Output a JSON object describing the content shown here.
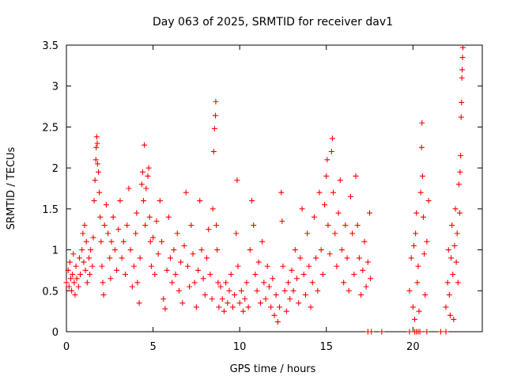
{
  "chart_data": {
    "type": "scatter",
    "title": "Day 063 of 2025, SRMTID for receiver dav1",
    "xlabel": "GPS time / hours",
    "ylabel": "SRMTID / TECUs",
    "xlim": [
      0,
      24
    ],
    "ylim": [
      0,
      3.5
    ],
    "x_ticks": [
      0,
      5,
      10,
      15,
      20
    ],
    "x_tick_labels": [
      "0",
      "5",
      "10",
      "15",
      "20"
    ],
    "y_ticks": [
      0,
      0.5,
      1,
      1.5,
      2,
      2.5,
      3,
      3.5
    ],
    "y_tick_labels": [
      "0",
      "0.5",
      "1",
      "1.5",
      "2",
      "2.5",
      "3",
      "3.5"
    ],
    "grid": false,
    "marker": "+",
    "series": [
      {
        "name": "dav1",
        "color": "#ff0000",
        "points": [
          [
            0.0,
            0.6
          ],
          [
            0.1,
            0.75
          ],
          [
            0.15,
            0.55
          ],
          [
            0.2,
            0.85
          ],
          [
            0.25,
            0.65
          ],
          [
            0.3,
            0.5
          ],
          [
            0.35,
            0.7
          ],
          [
            0.4,
            0.95
          ],
          [
            0.45,
            0.6
          ],
          [
            0.5,
            0.45
          ],
          [
            0.55,
            0.8
          ],
          [
            0.6,
            0.65
          ],
          [
            0.7,
            0.55
          ],
          [
            0.75,
            0.9
          ],
          [
            0.8,
            0.7
          ],
          [
            0.9,
            1.0
          ],
          [
            0.95,
            1.2
          ],
          [
            1.0,
            0.85
          ],
          [
            1.05,
            1.3
          ],
          [
            1.1,
            0.75
          ],
          [
            1.15,
            1.1
          ],
          [
            1.2,
            0.6
          ],
          [
            1.3,
            0.9
          ],
          [
            1.35,
            0.7
          ],
          [
            1.4,
            1.0
          ],
          [
            1.5,
            0.8
          ],
          [
            1.55,
            1.15
          ],
          [
            1.6,
            1.6
          ],
          [
            1.65,
            1.85
          ],
          [
            1.7,
            2.1
          ],
          [
            1.72,
            2.25
          ],
          [
            1.75,
            2.38
          ],
          [
            1.78,
            2.3
          ],
          [
            1.8,
            2.05
          ],
          [
            1.85,
            1.95
          ],
          [
            1.9,
            1.7
          ],
          [
            1.95,
            1.4
          ],
          [
            2.0,
            1.1
          ],
          [
            2.05,
            0.8
          ],
          [
            2.1,
            0.6
          ],
          [
            2.15,
            0.45
          ],
          [
            2.2,
            1.3
          ],
          [
            2.3,
            1.55
          ],
          [
            2.4,
            1.2
          ],
          [
            2.5,
            0.9
          ],
          [
            2.55,
            0.65
          ],
          [
            2.6,
            1.1
          ],
          [
            2.7,
            1.4
          ],
          [
            2.8,
            1.0
          ],
          [
            2.9,
            0.75
          ],
          [
            3.0,
            1.25
          ],
          [
            3.1,
            1.6
          ],
          [
            3.2,
            0.9
          ],
          [
            3.3,
            1.1
          ],
          [
            3.4,
            0.7
          ],
          [
            3.5,
            1.3
          ],
          [
            3.6,
            1.75
          ],
          [
            3.7,
            1.0
          ],
          [
            3.8,
            0.55
          ],
          [
            3.9,
            0.8
          ],
          [
            4.0,
            1.2
          ],
          [
            4.05,
            1.45
          ],
          [
            4.1,
            0.6
          ],
          [
            4.2,
            0.35
          ],
          [
            4.25,
            0.9
          ],
          [
            4.35,
            1.8
          ],
          [
            4.4,
            1.95
          ],
          [
            4.45,
            1.6
          ],
          [
            4.5,
            2.28
          ],
          [
            4.55,
            1.3
          ],
          [
            4.6,
            1.75
          ],
          [
            4.7,
            1.9
          ],
          [
            4.75,
            2.0
          ],
          [
            4.8,
            1.4
          ],
          [
            4.85,
            1.1
          ],
          [
            4.9,
            0.8
          ],
          [
            5.0,
            1.15
          ],
          [
            5.1,
            0.7
          ],
          [
            5.2,
            1.35
          ],
          [
            5.3,
            0.95
          ],
          [
            5.4,
            1.6
          ],
          [
            5.5,
            1.1
          ],
          [
            5.6,
            0.4
          ],
          [
            5.7,
            0.28
          ],
          [
            5.8,
            0.75
          ],
          [
            5.9,
            1.4
          ],
          [
            6.0,
            0.9
          ],
          [
            6.1,
            0.6
          ],
          [
            6.2,
            1.0
          ],
          [
            6.3,
            0.7
          ],
          [
            6.4,
            1.2
          ],
          [
            6.5,
            0.5
          ],
          [
            6.6,
            0.85
          ],
          [
            6.7,
            0.35
          ],
          [
            6.8,
            1.05
          ],
          [
            6.9,
            1.7
          ],
          [
            7.0,
            0.8
          ],
          [
            7.1,
            0.55
          ],
          [
            7.2,
            1.3
          ],
          [
            7.3,
            0.95
          ],
          [
            7.4,
            0.6
          ],
          [
            7.5,
            0.3
          ],
          [
            7.6,
            0.75
          ],
          [
            7.7,
            1.6
          ],
          [
            7.8,
            1.0
          ],
          [
            7.9,
            0.65
          ],
          [
            8.0,
            0.45
          ],
          [
            8.1,
            0.9
          ],
          [
            8.2,
            1.25
          ],
          [
            8.3,
            0.7
          ],
          [
            8.4,
            0.4
          ],
          [
            8.45,
            1.5
          ],
          [
            8.5,
            2.2
          ],
          [
            8.55,
            2.48
          ],
          [
            8.6,
            2.64
          ],
          [
            8.62,
            2.81
          ],
          [
            8.65,
            1.3
          ],
          [
            8.7,
            1.0
          ],
          [
            8.75,
            0.6
          ],
          [
            8.8,
            0.3
          ],
          [
            8.9,
            0.55
          ],
          [
            9.0,
            0.4
          ],
          [
            9.1,
            0.25
          ],
          [
            9.2,
            0.6
          ],
          [
            9.3,
            0.35
          ],
          [
            9.4,
            0.5
          ],
          [
            9.5,
            0.7
          ],
          [
            9.6,
            0.3
          ],
          [
            9.7,
            0.45
          ],
          [
            9.8,
            1.2
          ],
          [
            9.85,
            1.85
          ],
          [
            9.9,
            0.8
          ],
          [
            10.0,
            0.35
          ],
          [
            10.1,
            0.5
          ],
          [
            10.2,
            0.25
          ],
          [
            10.3,
            0.4
          ],
          [
            10.4,
            0.6
          ],
          [
            10.5,
            0.3
          ],
          [
            10.6,
            1.0
          ],
          [
            10.7,
            1.6
          ],
          [
            10.8,
            1.3
          ],
          [
            10.9,
            0.7
          ],
          [
            11.0,
            0.5
          ],
          [
            11.1,
            0.85
          ],
          [
            11.2,
            0.35
          ],
          [
            11.3,
            1.1
          ],
          [
            11.4,
            0.6
          ],
          [
            11.5,
            0.4
          ],
          [
            11.6,
            0.8
          ],
          [
            11.7,
            0.55
          ],
          [
            11.8,
            0.3
          ],
          [
            11.9,
            0.65
          ],
          [
            12.0,
            0.2
          ],
          [
            12.1,
            0.45
          ],
          [
            12.2,
            0.12
          ],
          [
            12.3,
            0.3
          ],
          [
            12.4,
            1.7
          ],
          [
            12.45,
            1.35
          ],
          [
            12.5,
            0.8
          ],
          [
            12.6,
            0.5
          ],
          [
            12.7,
            0.25
          ],
          [
            12.8,
            0.6
          ],
          [
            12.9,
            0.4
          ],
          [
            13.0,
            0.75
          ],
          [
            13.1,
            0.5
          ],
          [
            13.2,
            1.0
          ],
          [
            13.3,
            0.65
          ],
          [
            13.4,
            0.35
          ],
          [
            13.5,
            0.9
          ],
          [
            13.6,
            1.5
          ],
          [
            13.7,
            0.7
          ],
          [
            13.8,
            0.45
          ],
          [
            13.9,
            1.2
          ],
          [
            14.0,
            0.8
          ],
          [
            14.1,
            0.3
          ],
          [
            14.2,
            0.6
          ],
          [
            14.3,
            1.4
          ],
          [
            14.4,
            0.9
          ],
          [
            14.5,
            0.5
          ],
          [
            14.6,
            1.7
          ],
          [
            14.7,
            1.0
          ],
          [
            14.8,
            0.7
          ],
          [
            14.9,
            1.55
          ],
          [
            15.0,
            1.9
          ],
          [
            15.05,
            2.1
          ],
          [
            15.1,
            1.3
          ],
          [
            15.2,
            0.95
          ],
          [
            15.3,
            2.2
          ],
          [
            15.35,
            2.36
          ],
          [
            15.4,
            1.7
          ],
          [
            15.5,
            1.2
          ],
          [
            15.6,
            0.8
          ],
          [
            15.7,
            1.45
          ],
          [
            15.8,
            1.85
          ],
          [
            15.9,
            1.0
          ],
          [
            16.0,
            0.6
          ],
          [
            16.1,
            1.3
          ],
          [
            16.2,
            0.9
          ],
          [
            16.3,
            0.5
          ],
          [
            16.4,
            1.65
          ],
          [
            16.5,
            1.2
          ],
          [
            16.6,
            0.7
          ],
          [
            16.7,
            1.9
          ],
          [
            16.8,
            1.3
          ],
          [
            16.9,
            0.9
          ],
          [
            17.0,
            0.45
          ],
          [
            17.1,
            0.75
          ],
          [
            17.2,
            1.1
          ],
          [
            17.3,
            0.55
          ],
          [
            17.4,
            0.85
          ],
          [
            17.5,
            1.45
          ],
          [
            17.55,
            0.65
          ],
          [
            17.4,
            0.0
          ],
          [
            17.6,
            0.0
          ],
          [
            18.2,
            0.0
          ],
          [
            19.8,
            0.0
          ],
          [
            20.1,
            0.0
          ],
          [
            20.2,
            0.0
          ],
          [
            20.3,
            0.0
          ],
          [
            20.8,
            0.0
          ],
          [
            21.6,
            0.0
          ],
          [
            21.9,
            0.0
          ],
          [
            19.8,
            0.5
          ],
          [
            19.9,
            0.9
          ],
          [
            20.0,
            0.3
          ],
          [
            20.05,
            1.05
          ],
          [
            20.1,
            0.15
          ],
          [
            20.15,
            1.2
          ],
          [
            20.2,
            1.45
          ],
          [
            20.25,
            0.6
          ],
          [
            20.3,
            0.8
          ],
          [
            20.35,
            0.25
          ],
          [
            20.4,
            0.0
          ],
          [
            20.45,
            1.7
          ],
          [
            20.5,
            2.25
          ],
          [
            20.52,
            2.55
          ],
          [
            20.55,
            1.9
          ],
          [
            20.6,
            1.4
          ],
          [
            20.65,
            0.95
          ],
          [
            20.7,
            0.45
          ],
          [
            20.8,
            1.1
          ],
          [
            20.9,
            1.6
          ],
          [
            21.9,
            0.3
          ],
          [
            22.0,
            0.6
          ],
          [
            22.05,
            1.0
          ],
          [
            22.1,
            0.45
          ],
          [
            22.15,
            0.2
          ],
          [
            22.2,
            0.9
          ],
          [
            22.25,
            1.3
          ],
          [
            22.3,
            0.7
          ],
          [
            22.35,
            0.15
          ],
          [
            22.4,
            1.05
          ],
          [
            22.45,
            1.5
          ],
          [
            22.5,
            0.85
          ],
          [
            22.55,
            1.2
          ],
          [
            22.6,
            0.6
          ],
          [
            22.65,
            1.8
          ],
          [
            22.7,
            1.45
          ],
          [
            22.72,
            1.95
          ],
          [
            22.75,
            2.15
          ],
          [
            22.78,
            2.62
          ],
          [
            22.8,
            2.8
          ],
          [
            22.82,
            3.1
          ],
          [
            22.84,
            3.2
          ],
          [
            22.86,
            3.35
          ],
          [
            22.88,
            3.47
          ]
        ]
      }
    ]
  }
}
